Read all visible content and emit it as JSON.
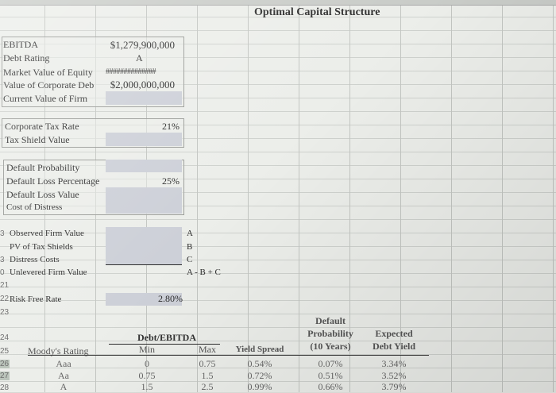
{
  "title": "Optimal Capital Structure",
  "inputs": {
    "ebitda_label": "EBITDA",
    "ebitda_value": "$1,279,900,000",
    "debt_rating_label": "Debt Rating",
    "debt_rating_value": "A",
    "equity_label": "Market Value of Equity",
    "equity_value": "##############",
    "debt_value_label": "Value of Corporate Deb",
    "debt_value_value": "$2,000,000,000",
    "firm_value_label": "Current Value of Firm"
  },
  "tax": {
    "rate_label": "Corporate Tax Rate",
    "rate_value": "21%",
    "shield_label": "Tax Shield Value"
  },
  "distress": {
    "prob_label": "Default Probability",
    "loss_pct_label": "Default Loss Percentage",
    "loss_pct_value": "25%",
    "loss_value_label": "Default Loss Value",
    "cost_label": "Cost of Distress"
  },
  "firm": {
    "observed_label": "Observed Firm Value",
    "observed_code": "A",
    "pv_label": "PV of Tax Shields",
    "pv_code": "B",
    "distress_label": "Distress Costs",
    "distress_code": "C",
    "unlevered_label": "Unlevered Firm Value",
    "unlevered_code": "A - B + C"
  },
  "risk_free": {
    "label": "Risk Free Rate",
    "value": "2.80%"
  },
  "row_numbers": [
    "21",
    "22",
    "23",
    "24",
    "25",
    "26",
    "27",
    "28"
  ],
  "partial_row_numbers": [
    "3",
    "3",
    "0"
  ],
  "table": {
    "headers": {
      "rating": "Moody's Rating",
      "group": "Debt/EBITDA",
      "min": "Min",
      "max": "Max",
      "spread": "Yield Spread",
      "prob_l1": "Default",
      "prob_l2": "Probability",
      "prob_l3": "(10 Years)",
      "yield_l1": "Expected",
      "yield_l2": "Debt Yield"
    },
    "rows": [
      {
        "rating": "Aaa",
        "min": "0",
        "max": "0.75",
        "spread": "0.54%",
        "prob": "0.07%",
        "yield": "3.34%"
      },
      {
        "rating": "Aa",
        "min": "0.75",
        "max": "1.5",
        "spread": "0.72%",
        "prob": "0.51%",
        "yield": "3.52%"
      },
      {
        "rating": "A",
        "min": "1.5",
        "max": "2.5",
        "spread": "0.99%",
        "prob": "0.66%",
        "yield": "3.79%"
      }
    ]
  }
}
